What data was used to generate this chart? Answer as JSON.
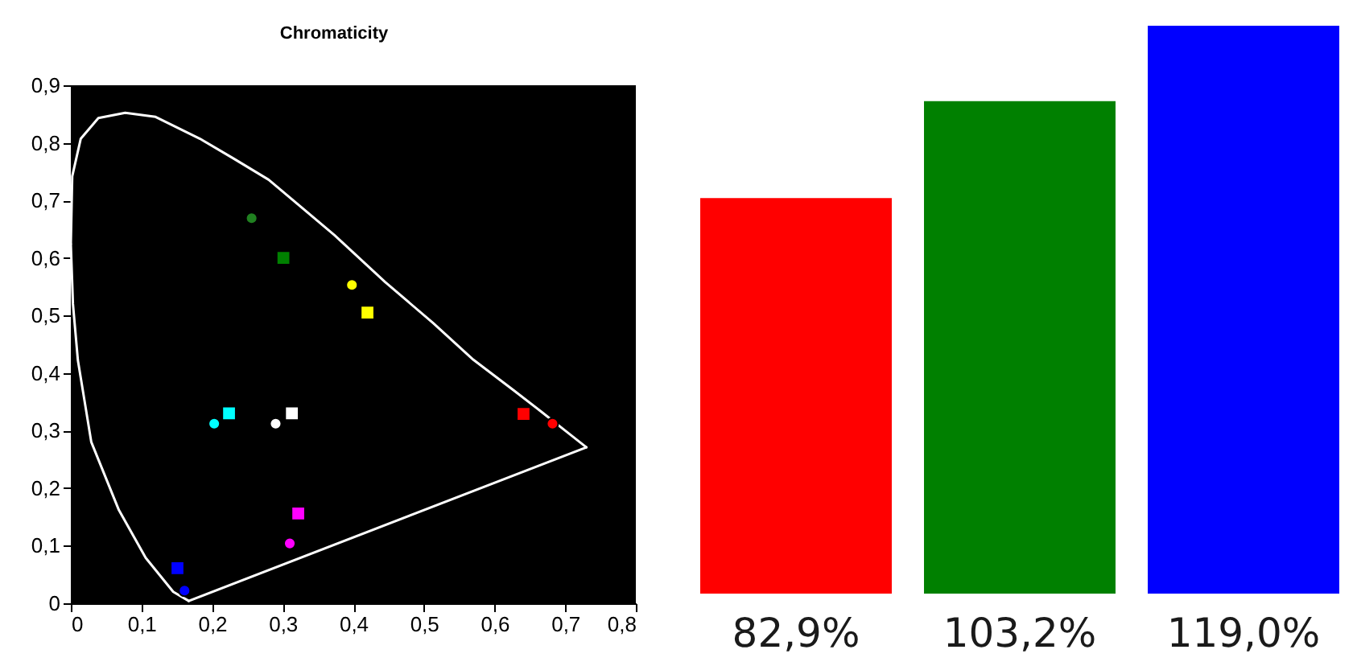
{
  "chart_data": [
    {
      "type": "scatter",
      "title": "Chromaticity",
      "xlim": [
        0,
        0.8
      ],
      "ylim": [
        0,
        0.9
      ],
      "xticks": [
        0,
        {
          "value": 0.1,
          "label": "0,1"
        },
        {
          "value": 0.2,
          "label": "0,2"
        },
        {
          "value": 0.3,
          "label": "0,3"
        },
        {
          "value": 0.4,
          "label": "0,4"
        },
        {
          "value": 0.5,
          "label": "0,5"
        },
        {
          "value": 0.6,
          "label": "0,6"
        },
        {
          "value": 0.7,
          "label": "0,7"
        },
        {
          "value": 0.8,
          "label": "0,8"
        }
      ],
      "yticks": [
        0,
        {
          "value": 0.1,
          "label": "0,1"
        },
        {
          "value": 0.2,
          "label": "0,2"
        },
        {
          "value": 0.3,
          "label": "0,3"
        },
        {
          "value": 0.4,
          "label": "0,4"
        },
        {
          "value": 0.5,
          "label": "0,5"
        },
        {
          "value": 0.6,
          "label": "0,6"
        },
        {
          "value": 0.7,
          "label": "0,7"
        },
        {
          "value": 0.8,
          "label": "0,8"
        },
        {
          "value": 0.9,
          "label": "0,9"
        }
      ],
      "series": [
        {
          "type": "line",
          "color": "#ffffff",
          "marker": "none",
          "x": [
            0.0,
            0.002,
            0.014,
            0.039,
            0.077,
            0.12,
            0.183,
            0.23,
            0.28,
            0.373,
            0.445,
            0.513,
            0.57,
            0.627,
            0.666,
            0.7,
            0.73
          ],
          "values": [
            0.624,
            0.742,
            0.807,
            0.843,
            0.852,
            0.845,
            0.807,
            0.773,
            0.736,
            0.64,
            0.558,
            0.487,
            0.423,
            0.37,
            0.333,
            0.3,
            0.271
          ]
        },
        {
          "type": "line",
          "color": "#ffffff",
          "marker": "none",
          "x": [
            0.0,
            0.003,
            0.01,
            0.029,
            0.068,
            0.106,
            0.145,
            0.167
          ],
          "values": [
            0.624,
            0.52,
            0.422,
            0.28,
            0.162,
            0.079,
            0.02,
            0.004
          ]
        },
        {
          "type": "line",
          "color": "#ffffff",
          "marker": "none",
          "x": [
            0.167,
            0.73
          ],
          "values": [
            0.004,
            0.271
          ]
        },
        {
          "type": "scatter",
          "marker": "circle",
          "x": [
            0.682,
            0.256,
            0.161,
            0.203,
            0.31,
            0.398,
            0.29
          ],
          "values": [
            0.312,
            0.669,
            0.022,
            0.312,
            0.104,
            0.553,
            0.312
          ],
          "colors": [
            "#ff0000",
            "#208020",
            "#0000ff",
            "#00ffff",
            "#ff00ff",
            "#ffff00",
            "#ffffff"
          ]
        },
        {
          "type": "scatter",
          "marker": "square",
          "x": [
            0.641,
            0.301,
            0.151,
            0.224,
            0.322,
            0.42,
            0.313
          ],
          "values": [
            0.329,
            0.6,
            0.061,
            0.33,
            0.156,
            0.505,
            0.33
          ],
          "colors": [
            "#ff0000",
            "#008000",
            "#0000ff",
            "#00ffff",
            "#ff00ff",
            "#ffff00",
            "#ffffff"
          ]
        }
      ]
    },
    {
      "type": "bar",
      "categories": [
        null,
        null,
        null
      ],
      "values": [
        82.9,
        103.2,
        119.0
      ],
      "colors": [
        "#ff0000",
        "#008000",
        "#0000ff"
      ],
      "value_labels": [
        "82,9%",
        "103,2%",
        "119,0%"
      ],
      "tick_labels": false
    }
  ]
}
